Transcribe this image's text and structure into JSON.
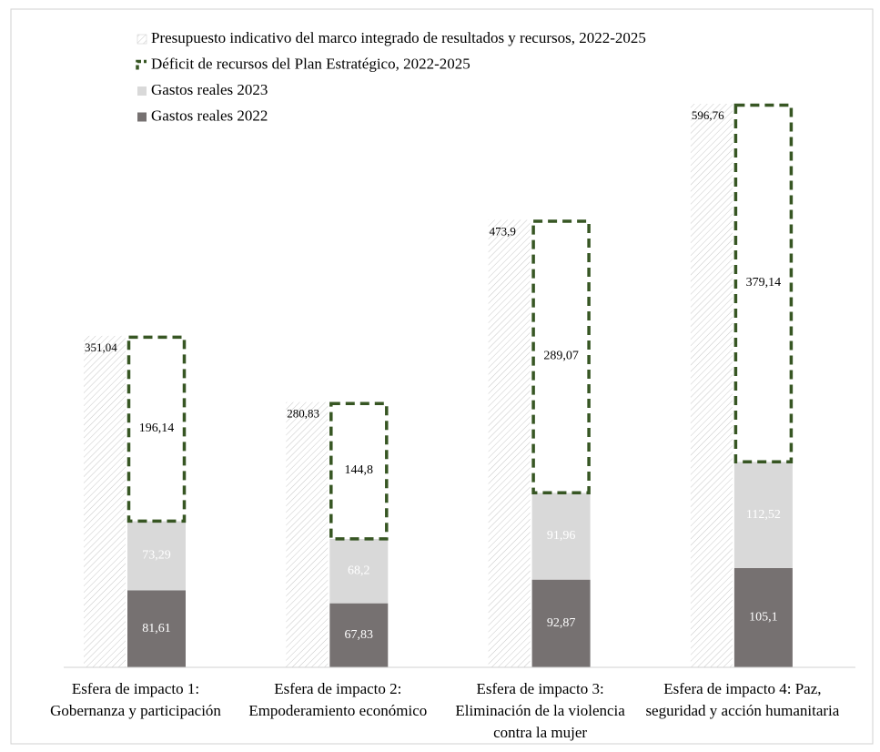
{
  "chart_data": {
    "type": "bar",
    "categories": [
      "Esfera de impacto 1: Gobernanza y participación",
      "Esfera de impacto 2: Empoderamiento económico",
      "Esfera de impacto 3: Eliminación de la violencia contra la mujer",
      "Esfera de impacto 4: Paz, seguridad y acción humanitaria"
    ],
    "series": [
      {
        "name": "Presupuesto indicativo del marco integrado de resultados y recursos, 2022-2025",
        "color": "#c8c8c8",
        "values": [
          351.04,
          280.83,
          473.9,
          596.76
        ],
        "value_labels": [
          "351,04",
          "280,83",
          "473,9",
          "596,76"
        ]
      },
      {
        "name": "Déficit de recursos del Plan Estratégico, 2022-2025",
        "color": "#375623",
        "values": [
          196.14,
          144.8,
          289.07,
          379.14
        ],
        "value_labels": [
          "196,14",
          "144,8",
          "289,07",
          "379,14"
        ]
      },
      {
        "name": "Gastos reales 2023",
        "color": "#d9d9d9",
        "values": [
          73.29,
          68.2,
          91.96,
          112.52
        ],
        "value_labels": [
          "73,29",
          "68,2",
          "91,96",
          "112,52"
        ]
      },
      {
        "name": "Gastos reales 2022",
        "color": "#767171",
        "values": [
          81.61,
          67.83,
          92.87,
          105.1
        ],
        "value_labels": [
          "81,61",
          "67,83",
          "92,87",
          "105,1"
        ]
      }
    ]
  }
}
